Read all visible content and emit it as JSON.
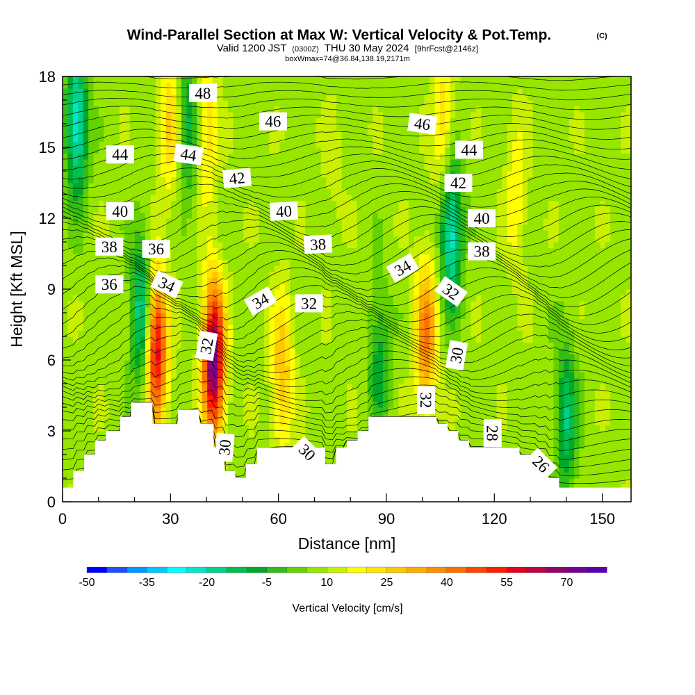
{
  "chart_data": {
    "type": "heatmap",
    "title": "Wind-Parallel Section at Max W: Vertical Velocity & Pot.Temp.",
    "title_mark": "(C)",
    "subtitle_valid": "Valid 1200 JST",
    "subtitle_z": "(0300Z)",
    "subtitle_date": "THU 30 May 2024",
    "subtitle_fcst": "[9hrFcst@2146z]",
    "subtitle_box": "boxWmax=74@36.84,138.19,2171m",
    "xlabel": "Distance [nm]",
    "ylabel": "Height [Kft MSL]",
    "xlim": [
      0,
      158
    ],
    "ylim": [
      0,
      18
    ],
    "x_ticks": [
      0,
      30,
      60,
      90,
      120,
      150
    ],
    "y_ticks": [
      0,
      3,
      6,
      9,
      12,
      15,
      18
    ],
    "colorbar": {
      "label": "Vertical Velocity [cm/s]",
      "tick_labels": [
        "-50",
        "-35",
        "-20",
        "-5",
        "10",
        "25",
        "40",
        "55",
        "70"
      ],
      "tick_values": [
        -50,
        -35,
        -20,
        -5,
        10,
        25,
        40,
        55,
        70
      ],
      "range": [
        -50,
        80
      ],
      "colors": [
        "#0000ff",
        "#1e50ff",
        "#0096ff",
        "#00c8ff",
        "#00ffff",
        "#00e6c8",
        "#00d28c",
        "#00be50",
        "#00aa28",
        "#32be14",
        "#64d200",
        "#96e600",
        "#c8f000",
        "#ffff00",
        "#ffe600",
        "#ffc800",
        "#ffaa00",
        "#ff8c00",
        "#ff6e00",
        "#ff4600",
        "#ff1e00",
        "#e6001e",
        "#be0046",
        "#96006e",
        "#780096",
        "#5a00b4"
      ]
    },
    "w_features": [
      {
        "x": 26,
        "z": 6.5,
        "w": 60
      },
      {
        "x": 42,
        "z": 6.0,
        "w": 75
      },
      {
        "x": 101,
        "z": 7.0,
        "w": 40
      },
      {
        "x": 61,
        "z": 5.5,
        "w": 30
      },
      {
        "x": 30,
        "z": 16.0,
        "w": 25
      },
      {
        "x": 40,
        "z": 16.0,
        "w": 25
      },
      {
        "x": 106,
        "z": 16.0,
        "w": 25
      },
      {
        "x": 126,
        "z": 13.0,
        "w": 20
      },
      {
        "x": 75,
        "z": 14.0,
        "w": 12
      },
      {
        "x": 4,
        "z": 16.0,
        "w": -25
      },
      {
        "x": 22,
        "z": 8.0,
        "w": -22
      },
      {
        "x": 35,
        "z": 16.0,
        "w": -12
      },
      {
        "x": 108,
        "z": 11.5,
        "w": -25
      },
      {
        "x": 140,
        "z": 3.5,
        "w": -15
      },
      {
        "x": 88,
        "z": 6.0,
        "w": -8
      }
    ],
    "terrain": [
      [
        0,
        0.6
      ],
      [
        3,
        0.6
      ],
      [
        3,
        1.3
      ],
      [
        6,
        1.3
      ],
      [
        6,
        2.0
      ],
      [
        9,
        2.0
      ],
      [
        9,
        2.6
      ],
      [
        12,
        2.6
      ],
      [
        12,
        3.0
      ],
      [
        16,
        3.0
      ],
      [
        16,
        3.6
      ],
      [
        19,
        3.6
      ],
      [
        19,
        4.2
      ],
      [
        25,
        4.2
      ],
      [
        25,
        3.3
      ],
      [
        32,
        3.3
      ],
      [
        32,
        3.9
      ],
      [
        38,
        3.9
      ],
      [
        38,
        3.3
      ],
      [
        42,
        3.3
      ],
      [
        42,
        2.3
      ],
      [
        45,
        2.3
      ],
      [
        45,
        1.3
      ],
      [
        48,
        1.3
      ],
      [
        48,
        1.0
      ],
      [
        51,
        1.0
      ],
      [
        51,
        1.6
      ],
      [
        54,
        1.6
      ],
      [
        54,
        2.3
      ],
      [
        73,
        2.3
      ],
      [
        73,
        1.6
      ],
      [
        76,
        1.6
      ],
      [
        76,
        2.3
      ],
      [
        79,
        2.3
      ],
      [
        79,
        2.6
      ],
      [
        82,
        2.6
      ],
      [
        82,
        3.0
      ],
      [
        85,
        3.0
      ],
      [
        85,
        3.6
      ],
      [
        104,
        3.6
      ],
      [
        104,
        3.3
      ],
      [
        107,
        3.3
      ],
      [
        107,
        3.0
      ],
      [
        110,
        3.0
      ],
      [
        110,
        2.6
      ],
      [
        113,
        2.6
      ],
      [
        113,
        2.3
      ],
      [
        127,
        2.3
      ],
      [
        127,
        2.0
      ],
      [
        132,
        2.0
      ],
      [
        132,
        1.6
      ],
      [
        135,
        1.6
      ],
      [
        135,
        1.0
      ],
      [
        138,
        1.0
      ],
      [
        138,
        0.6
      ],
      [
        158,
        0.6
      ]
    ],
    "theta_labels": [
      {
        "text": "48",
        "x": 39,
        "z": 17.3,
        "angle": 0
      },
      {
        "text": "46",
        "x": 58.5,
        "z": 16.1,
        "angle": 0
      },
      {
        "text": "46",
        "x": 100,
        "z": 16.0,
        "angle": 8
      },
      {
        "text": "44",
        "x": 16,
        "z": 14.7,
        "angle": 0
      },
      {
        "text": "44",
        "x": 35,
        "z": 14.7,
        "angle": 8
      },
      {
        "text": "44",
        "x": 113,
        "z": 14.9,
        "angle": 0
      },
      {
        "text": "42",
        "x": 48.5,
        "z": 13.7,
        "angle": -5
      },
      {
        "text": "42",
        "x": 110,
        "z": 13.5,
        "angle": 0
      },
      {
        "text": "40",
        "x": 16,
        "z": 12.3,
        "angle": 0
      },
      {
        "text": "40",
        "x": 61.5,
        "z": 12.3,
        "angle": -3
      },
      {
        "text": "40",
        "x": 116.5,
        "z": 12.0,
        "angle": 0
      },
      {
        "text": "38",
        "x": 13,
        "z": 10.8,
        "angle": 0
      },
      {
        "text": "38",
        "x": 71,
        "z": 10.9,
        "angle": -3
      },
      {
        "text": "38",
        "x": 116.5,
        "z": 10.6,
        "angle": 0
      },
      {
        "text": "36",
        "x": 26,
        "z": 10.7,
        "angle": 0
      },
      {
        "text": "36",
        "x": 13,
        "z": 9.2,
        "angle": 0
      },
      {
        "text": "34",
        "x": 29,
        "z": 9.2,
        "angle": 25
      },
      {
        "text": "34",
        "x": 55,
        "z": 8.5,
        "angle": -30
      },
      {
        "text": "34",
        "x": 94.5,
        "z": 9.9,
        "angle": -30
      },
      {
        "text": "32",
        "x": 68.5,
        "z": 8.4,
        "angle": 0
      },
      {
        "text": "32",
        "x": 108,
        "z": 8.9,
        "angle": 35
      },
      {
        "text": "32",
        "x": 40,
        "z": 6.6,
        "angle": -80
      },
      {
        "text": "32",
        "x": 101,
        "z": 4.3,
        "angle": 90
      },
      {
        "text": "30",
        "x": 109.5,
        "z": 6.2,
        "angle": -80
      },
      {
        "text": "30",
        "x": 45,
        "z": 2.3,
        "angle": -85
      },
      {
        "text": "30",
        "x": 68,
        "z": 2.1,
        "angle": 45
      },
      {
        "text": "28",
        "x": 119.5,
        "z": 2.9,
        "angle": 90
      },
      {
        "text": "26",
        "x": 133,
        "z": 1.6,
        "angle": 45
      }
    ]
  }
}
